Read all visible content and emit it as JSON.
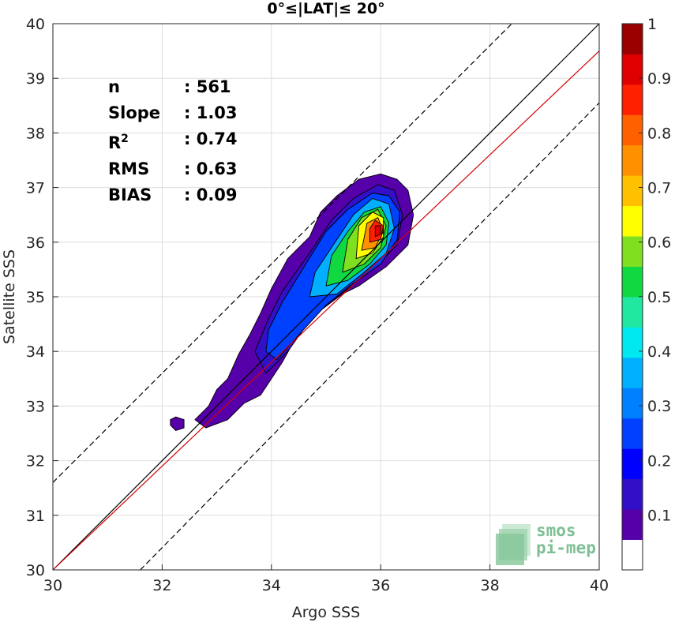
{
  "chart_data": {
    "type": "heatmap",
    "title": "0°≤|LAT|≤ 20°",
    "xlabel": "Argo SSS",
    "ylabel": "Satellite SSS",
    "xlim": [
      30,
      40
    ],
    "ylim": [
      30,
      40
    ],
    "xticks": [
      "30",
      "32",
      "34",
      "36",
      "38",
      "40"
    ],
    "yticks": [
      "30",
      "31",
      "32",
      "33",
      "34",
      "35",
      "36",
      "37",
      "38",
      "39",
      "40"
    ],
    "grid": true,
    "stats": {
      "n": {
        "label": "n",
        "value": ": 561"
      },
      "slope": {
        "label": "Slope",
        "value": ": 1.03"
      },
      "r2": {
        "label": "R",
        "sup": "2",
        "value": ": 0.74"
      },
      "rms": {
        "label": "RMS",
        "value": ": 0.63"
      },
      "bias": {
        "label": "BIAS",
        "value": ": 0.09"
      }
    },
    "lines": [
      {
        "name": "1:1",
        "color": "#000000",
        "style": "solid",
        "points": [
          [
            30,
            30
          ],
          [
            40,
            40
          ]
        ]
      },
      {
        "name": "fit",
        "color": "#d40000",
        "style": "solid",
        "points": [
          [
            30,
            30
          ],
          [
            40,
            39.5
          ]
        ]
      },
      {
        "name": "+1.6",
        "color": "#000000",
        "style": "dashed",
        "points": [
          [
            30,
            31.6
          ],
          [
            38.4,
            40
          ]
        ]
      },
      {
        "name": "-1.6",
        "color": "#000000",
        "style": "dashed",
        "points": [
          [
            31.6,
            30
          ],
          [
            40,
            38.55
          ]
        ]
      }
    ],
    "density_peak": {
      "x": 35.95,
      "y": 36.2
    },
    "colorbar": {
      "ticks": [
        "0.1",
        "0.2",
        "0.3",
        "0.4",
        "0.5",
        "0.6",
        "0.7",
        "0.8",
        "0.9",
        "1"
      ],
      "colors": [
        "#ffffff",
        "#5500a8",
        "#3210c8",
        "#0000ff",
        "#0040ff",
        "#0080ff",
        "#00b0ff",
        "#00e8f0",
        "#20e8a0",
        "#10d840",
        "#80e020",
        "#ffff00",
        "#ffc000",
        "#ff9000",
        "#ff6000",
        "#ff2000",
        "#e00000",
        "#9a0000"
      ]
    },
    "contours": [
      {
        "level": 0.05,
        "color": "#5500a8",
        "points": [
          [
            32.6,
            32.75
          ],
          [
            32.8,
            32.6
          ],
          [
            33.2,
            32.75
          ],
          [
            33.5,
            33.05
          ],
          [
            33.8,
            33.2
          ],
          [
            34.2,
            33.8
          ],
          [
            34.5,
            34.35
          ],
          [
            34.9,
            34.75
          ],
          [
            35.3,
            35.05
          ],
          [
            35.6,
            35.2
          ],
          [
            36.1,
            35.55
          ],
          [
            36.5,
            35.95
          ],
          [
            36.6,
            36.5
          ],
          [
            36.5,
            36.95
          ],
          [
            36.3,
            37.15
          ],
          [
            36.0,
            37.25
          ],
          [
            35.6,
            37.15
          ],
          [
            35.2,
            36.85
          ],
          [
            34.9,
            36.55
          ],
          [
            34.7,
            36.1
          ],
          [
            34.3,
            35.7
          ],
          [
            34.0,
            35.15
          ],
          [
            33.8,
            34.7
          ],
          [
            33.6,
            34.3
          ],
          [
            33.4,
            33.95
          ],
          [
            33.2,
            33.5
          ],
          [
            33.0,
            33.3
          ],
          [
            32.85,
            33.0
          ]
        ]
      },
      {
        "level": 0.05,
        "color": "#5500a8",
        "points": [
          [
            32.15,
            32.65
          ],
          [
            32.25,
            32.55
          ],
          [
            32.4,
            32.6
          ],
          [
            32.4,
            32.75
          ],
          [
            32.25,
            32.8
          ],
          [
            32.15,
            32.75
          ]
        ]
      },
      {
        "level": 0.15,
        "color": "#3210c8",
        "points": [
          [
            33.7,
            34.0
          ],
          [
            33.9,
            33.6
          ],
          [
            34.3,
            34.0
          ],
          [
            34.8,
            34.7
          ],
          [
            35.4,
            35.15
          ],
          [
            35.9,
            35.55
          ],
          [
            36.3,
            35.95
          ],
          [
            36.4,
            36.5
          ],
          [
            36.25,
            36.95
          ],
          [
            35.95,
            37.05
          ],
          [
            35.5,
            36.8
          ],
          [
            35.1,
            36.4
          ],
          [
            34.7,
            35.8
          ],
          [
            34.2,
            35.1
          ],
          [
            33.95,
            34.6
          ]
        ]
      },
      {
        "level": 0.25,
        "color": "#0040ff",
        "points": [
          [
            33.9,
            34.0
          ],
          [
            34.1,
            33.85
          ],
          [
            34.5,
            34.3
          ],
          [
            35.0,
            34.85
          ],
          [
            35.5,
            35.25
          ],
          [
            36.0,
            35.6
          ],
          [
            36.3,
            36.05
          ],
          [
            36.35,
            36.55
          ],
          [
            36.15,
            36.85
          ],
          [
            35.85,
            36.9
          ],
          [
            35.4,
            36.6
          ],
          [
            35.0,
            36.2
          ],
          [
            34.6,
            35.55
          ],
          [
            34.2,
            34.9
          ],
          [
            33.95,
            34.4
          ]
        ]
      },
      {
        "level": 0.35,
        "color": "#00b0ff",
        "points": [
          [
            34.7,
            35.0
          ],
          [
            35.2,
            35.05
          ],
          [
            35.7,
            35.45
          ],
          [
            36.1,
            35.8
          ],
          [
            36.25,
            36.25
          ],
          [
            36.15,
            36.7
          ],
          [
            35.85,
            36.8
          ],
          [
            35.5,
            36.5
          ],
          [
            35.1,
            35.9
          ],
          [
            34.8,
            35.45
          ]
        ]
      },
      {
        "level": 0.45,
        "color": "#10d840",
        "points": [
          [
            35.0,
            35.2
          ],
          [
            35.4,
            35.3
          ],
          [
            35.8,
            35.6
          ],
          [
            36.1,
            35.95
          ],
          [
            36.15,
            36.35
          ],
          [
            36.0,
            36.65
          ],
          [
            35.7,
            36.55
          ],
          [
            35.4,
            36.2
          ],
          [
            35.1,
            35.75
          ]
        ]
      },
      {
        "level": 0.55,
        "color": "#80e020",
        "points": [
          [
            35.3,
            35.45
          ],
          [
            35.7,
            35.6
          ],
          [
            36.0,
            35.9
          ],
          [
            36.1,
            36.3
          ],
          [
            35.95,
            36.6
          ],
          [
            35.65,
            36.45
          ],
          [
            35.4,
            36.05
          ]
        ]
      },
      {
        "level": 0.65,
        "color": "#ffff00",
        "points": [
          [
            35.55,
            35.7
          ],
          [
            35.85,
            35.8
          ],
          [
            36.05,
            36.1
          ],
          [
            36.05,
            36.45
          ],
          [
            35.85,
            36.55
          ],
          [
            35.6,
            36.3
          ]
        ]
      },
      {
        "level": 0.75,
        "color": "#ff9000",
        "points": [
          [
            35.65,
            35.85
          ],
          [
            35.9,
            35.9
          ],
          [
            36.05,
            36.2
          ],
          [
            35.95,
            36.45
          ],
          [
            35.75,
            36.35
          ]
        ]
      },
      {
        "level": 0.85,
        "color": "#ff2000",
        "points": [
          [
            35.8,
            36.0
          ],
          [
            36.0,
            36.05
          ],
          [
            36.05,
            36.3
          ],
          [
            35.9,
            36.4
          ],
          [
            35.8,
            36.25
          ]
        ]
      },
      {
        "level": 0.95,
        "color": "#e00000",
        "points": [
          [
            35.9,
            36.1
          ],
          [
            36.0,
            36.15
          ],
          [
            36.0,
            36.3
          ],
          [
            35.9,
            36.3
          ]
        ]
      }
    ]
  },
  "logo": {
    "line1": "smos",
    "line2": "pi-mep"
  }
}
